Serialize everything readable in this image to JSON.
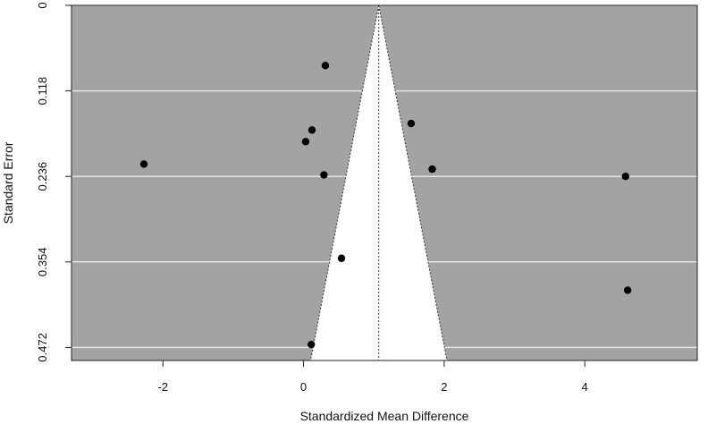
{
  "chart_data": {
    "type": "scatter",
    "subtype": "funnel-plot",
    "title": "",
    "xlabel": "Standardized Mean Difference",
    "ylabel": "Standard Error",
    "xlim": [
      -3.3,
      5.6
    ],
    "ylim": [
      0,
      0.49
    ],
    "y_reversed": true,
    "x_ticks": [
      -2,
      0,
      2,
      4
    ],
    "x_tick_labels": [
      "-2",
      "0",
      "2",
      "4"
    ],
    "y_ticks": [
      0,
      0.118,
      0.236,
      0.354,
      0.472
    ],
    "y_tick_labels": [
      "0",
      "0.118",
      "0.236",
      "0.354",
      "0.472"
    ],
    "grid": "horizontal",
    "summary_effect": 1.07,
    "funnel": {
      "apex": [
        1.07,
        0
      ],
      "base_left": [
        0.1,
        0.49
      ],
      "base_right": [
        2.04,
        0.49
      ]
    },
    "points": [
      {
        "x": 0.31,
        "y": 0.083
      },
      {
        "x": 0.12,
        "y": 0.172
      },
      {
        "x": 0.03,
        "y": 0.188
      },
      {
        "x": 1.53,
        "y": 0.163
      },
      {
        "x": -2.27,
        "y": 0.219
      },
      {
        "x": 0.29,
        "y": 0.234
      },
      {
        "x": 1.83,
        "y": 0.226
      },
      {
        "x": 4.58,
        "y": 0.236
      },
      {
        "x": 0.54,
        "y": 0.349
      },
      {
        "x": 4.61,
        "y": 0.393
      },
      {
        "x": 0.11,
        "y": 0.468
      }
    ],
    "colors": {
      "panel_bg": "#a3a3a3",
      "funnel_fill": "#ffffff",
      "gridline": "#e6e6e6",
      "point": "#000000",
      "axis": "#222222"
    }
  }
}
